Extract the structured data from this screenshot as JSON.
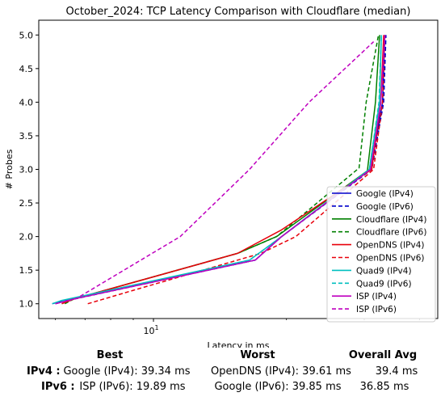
{
  "chart_data": {
    "type": "line",
    "title": "October_2024: TCP Latency Comparison with Cloudflare (median)",
    "xlabel": "Latency in ms",
    "ylabel": "# Probes",
    "xscale": "log",
    "xlim": [
      5.5,
      44
    ],
    "ylim": [
      0.78,
      5.22
    ],
    "x_ticks": [
      {
        "value": 10,
        "base": "10",
        "exp": "1"
      }
    ],
    "y_ticks": [
      "1.0",
      "1.5",
      "2.0",
      "2.5",
      "3.0",
      "3.5",
      "4.0",
      "4.5",
      "5.0"
    ],
    "grid": false,
    "legend_position": "lower right",
    "series": [
      {
        "name": "Google (IPv4)",
        "color": "#0000cc",
        "dash": false,
        "x": [
          5.9,
          6.3,
          17.0,
          19.5,
          31.0,
          33.0,
          33.4
        ],
        "y": [
          1,
          1.05,
          1.65,
          2,
          3,
          4,
          5
        ]
      },
      {
        "name": "Google (IPv6)",
        "color": "#0000cc",
        "dash": true,
        "x": [
          6.0,
          6.4,
          17.0,
          19.5,
          31.2,
          33.2,
          33.6
        ],
        "y": [
          1,
          1.05,
          1.65,
          2,
          3,
          4,
          5
        ]
      },
      {
        "name": "Cloudflare (IPv4)",
        "color": "#008000",
        "dash": false,
        "x": [
          6.2,
          6.6,
          15.5,
          19.0,
          30.5,
          31.8,
          32.5
        ],
        "y": [
          1,
          1.07,
          1.75,
          2,
          2.98,
          4,
          5
        ]
      },
      {
        "name": "Cloudflare (IPv6)",
        "color": "#008000",
        "dash": true,
        "x": [
          6.3,
          6.6,
          15.5,
          19.0,
          29.2,
          30.3,
          32.3
        ],
        "y": [
          1,
          1.07,
          1.75,
          2,
          3.02,
          4,
          5
        ]
      },
      {
        "name": "OpenDNS (IPv4)",
        "color": "#e8000b",
        "dash": false,
        "x": [
          6.2,
          6.6,
          15.5,
          19.5,
          31.2,
          32.7,
          33.2
        ],
        "y": [
          1,
          1.07,
          1.75,
          2.1,
          3,
          4,
          5
        ]
      },
      {
        "name": "OpenDNS (IPv6)",
        "color": "#e8000b",
        "dash": true,
        "x": [
          7.1,
          9.0,
          17.5,
          21.0,
          31.5,
          33.0,
          33.4
        ],
        "y": [
          1,
          1.2,
          1.75,
          2,
          3,
          4,
          5
        ]
      },
      {
        "name": "Quad9 (IPv4)",
        "color": "#00bfbf",
        "dash": false,
        "x": [
          5.9,
          6.2,
          16.5,
          19.5,
          30.8,
          32.5,
          32.8
        ],
        "y": [
          1,
          1.05,
          1.65,
          2,
          3,
          4,
          5
        ]
      },
      {
        "name": "Quad9 (IPv6)",
        "color": "#00bfbf",
        "dash": true,
        "x": [
          6.0,
          6.3,
          16.5,
          19.5,
          30.8,
          32.4,
          32.8
        ],
        "y": [
          1,
          1.05,
          1.65,
          2,
          3,
          4,
          5
        ]
      },
      {
        "name": "ISP (IPv4)",
        "color": "#bf00bf",
        "dash": false,
        "x": [
          6.0,
          6.6,
          17.0,
          19.5,
          31.0,
          32.7,
          33.4
        ],
        "y": [
          1,
          1.07,
          1.65,
          2,
          3,
          4,
          5
        ]
      },
      {
        "name": "ISP (IPv6)",
        "color": "#bf00bf",
        "dash": true,
        "x": [
          6.0,
          6.7,
          11.5,
          16.5,
          22.5,
          31.5
        ],
        "y": [
          1,
          1.08,
          2,
          3,
          4,
          4.9
        ]
      }
    ]
  },
  "summary": {
    "headers": {
      "best": "Best",
      "worst": "Worst",
      "avg": "Overall Avg"
    },
    "rows": [
      {
        "label": "IPv4 :",
        "best": "Google (IPv4): 39.34 ms",
        "worst": "OpenDNS (IPv4): 39.61 ms",
        "avg": "39.4 ms"
      },
      {
        "label": "IPv6 :",
        "best": "ISP (IPv6): 19.89 ms",
        "worst": "Google (IPv6): 39.85 ms",
        "avg": "36.85 ms"
      }
    ]
  }
}
